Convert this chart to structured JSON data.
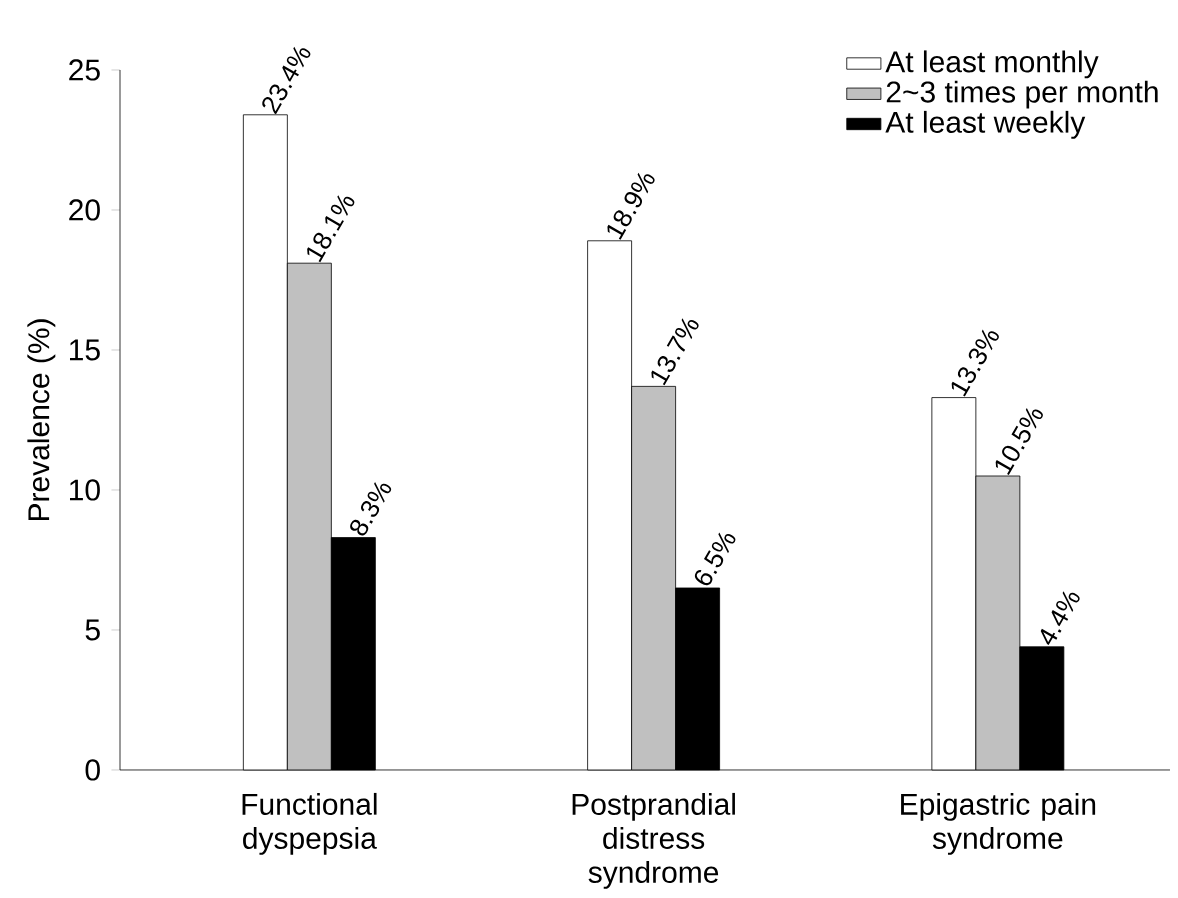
{
  "chart_data": {
    "type": "bar",
    "ylabel": "Prevalence (%)",
    "categories": [
      "Functional dyspepsia",
      "Postprandial distress syndrome",
      "Epigastric pain syndrome"
    ],
    "series": [
      {
        "name": "At least monthly",
        "color": "#ffffff",
        "values": [
          23.4,
          18.9,
          13.3
        ],
        "value_labels": [
          "23.4%",
          "18.9%",
          "13.3%"
        ]
      },
      {
        "name": "2~3 times per month",
        "color": "#c0c0c0",
        "values": [
          18.1,
          13.7,
          10.5
        ],
        "value_labels": [
          "18.1%",
          "13.7%",
          "10.5%"
        ]
      },
      {
        "name": "At least weekly",
        "color": "#000000",
        "values": [
          8.3,
          6.5,
          4.4
        ],
        "value_labels": [
          "8.3%",
          "6.5%",
          "4.4%"
        ]
      }
    ],
    "ylim": [
      0,
      25
    ],
    "yticks": [
      0,
      5,
      10,
      15,
      20,
      25
    ],
    "legend": "top right",
    "grid": false
  }
}
